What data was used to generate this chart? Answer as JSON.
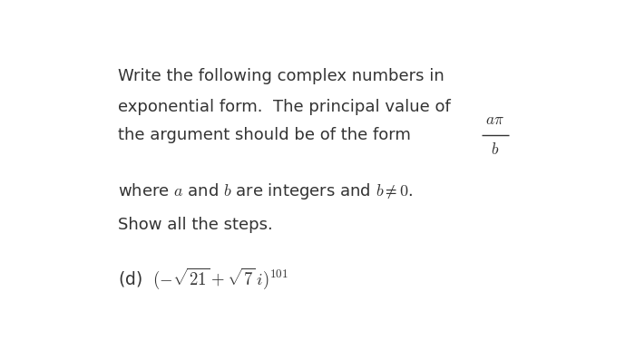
{
  "background_color": "#ffffff",
  "text_color": "#333333",
  "fig_width": 7.0,
  "fig_height": 3.97,
  "dpi": 100,
  "line1": "Write the following complex numbers in",
  "line2": "exponential form.  The principal value of",
  "line3_left": "the argument should be of the form",
  "line4": "where $a$ and $b$ are integers and $b \\neq 0$.",
  "line5": "Show all the steps.",
  "font_size_body": 13.0,
  "font_size_math_last": 13.5
}
